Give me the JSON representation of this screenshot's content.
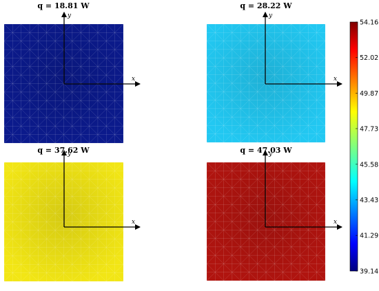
{
  "chart_data": {
    "type": "heatmap",
    "panels": [
      {
        "title": "q = 18.81 W",
        "base_color": "#0b1a8c",
        "x_axis_label": "x",
        "y_axis_label": "y"
      },
      {
        "title": "q = 28.22 W",
        "base_color": "#22c8f2",
        "x_axis_label": "x",
        "y_axis_label": "y"
      },
      {
        "title": "q = 37.62 W",
        "base_color": "#f2e615",
        "x_axis_label": "x",
        "y_axis_label": "y"
      },
      {
        "title": "q = 47.03 W",
        "base_color": "#b0140f",
        "x_axis_label": "x",
        "y_axis_label": "y"
      }
    ],
    "colorbar": {
      "min": 39.14,
      "max": 54.16,
      "colormap": "jet",
      "ticks": [
        54.16,
        52.02,
        49.87,
        47.73,
        45.58,
        43.43,
        41.29,
        39.14
      ]
    },
    "grid": "triangular mesh"
  }
}
